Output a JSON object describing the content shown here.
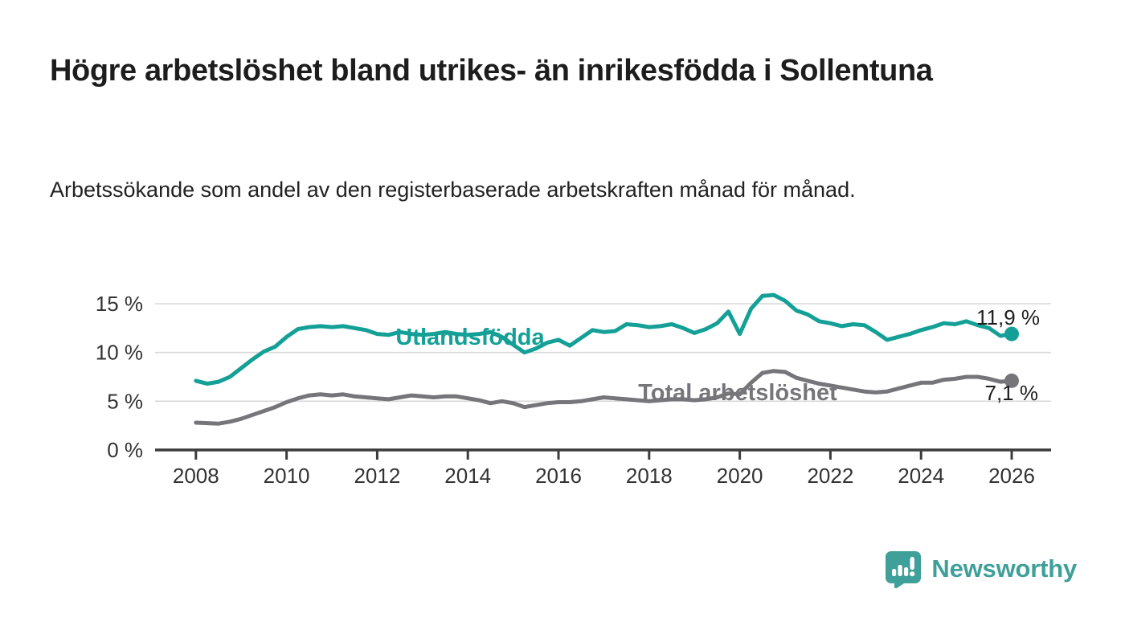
{
  "page": {
    "title": "Högre arbetslöshet bland utrikes- än inrikesfödda i Sollentuna",
    "subtitle": "Arbetssökande som andel av den registerbaserade arbetskraften månad för månad.",
    "brand": {
      "name": "Newsworthy",
      "color": "#3f9f99",
      "icon": "bar-chart-speech-bubble-icon"
    }
  },
  "chart_data": {
    "type": "line",
    "title": "Högre arbetslöshet bland utrikes- än inrikesfödda i Sollentuna",
    "xlabel": "",
    "ylabel": "",
    "grid": "horizontal",
    "xlim": [
      2007.1,
      2026.9
    ],
    "ylim": [
      0,
      16.5
    ],
    "x_ticks": [
      {
        "value": 2008,
        "label": "2008"
      },
      {
        "value": 2010,
        "label": "2010"
      },
      {
        "value": 2012,
        "label": "2012"
      },
      {
        "value": 2014,
        "label": "2014"
      },
      {
        "value": 2016,
        "label": "2016"
      },
      {
        "value": 2018,
        "label": "2018"
      },
      {
        "value": 2020,
        "label": "2020"
      },
      {
        "value": 2022,
        "label": "2022"
      },
      {
        "value": 2024,
        "label": "2024"
      },
      {
        "value": 2026,
        "label": "2026"
      }
    ],
    "y_ticks": [
      {
        "value": 0,
        "label": "0 %"
      },
      {
        "value": 5,
        "label": "5 %"
      },
      {
        "value": 10,
        "label": "10 %"
      },
      {
        "value": 15,
        "label": "15 %"
      }
    ],
    "x": [
      2008.0,
      2008.25,
      2008.5,
      2008.75,
      2009.0,
      2009.25,
      2009.5,
      2009.75,
      2010.0,
      2010.25,
      2010.5,
      2010.75,
      2011.0,
      2011.25,
      2011.5,
      2011.75,
      2012.0,
      2012.25,
      2012.5,
      2012.75,
      2013.0,
      2013.25,
      2013.5,
      2013.75,
      2014.0,
      2014.25,
      2014.5,
      2014.75,
      2015.0,
      2015.25,
      2015.5,
      2015.75,
      2016.0,
      2016.25,
      2016.5,
      2016.75,
      2017.0,
      2017.25,
      2017.5,
      2017.75,
      2018.0,
      2018.25,
      2018.5,
      2018.75,
      2019.0,
      2019.25,
      2019.5,
      2019.75,
      2020.0,
      2020.25,
      2020.5,
      2020.75,
      2021.0,
      2021.25,
      2021.5,
      2021.75,
      2022.0,
      2022.25,
      2022.5,
      2022.75,
      2023.0,
      2023.25,
      2023.5,
      2023.75,
      2024.0,
      2024.25,
      2024.5,
      2024.75,
      2025.0,
      2025.25,
      2025.5,
      2025.75,
      2026.0
    ],
    "series": [
      {
        "name": "Utlandsfödda",
        "color": "#14a096",
        "end_label": "11,9 %",
        "end_value": 11.9,
        "values": [
          7.1,
          6.8,
          7.0,
          7.5,
          8.4,
          9.3,
          10.1,
          10.6,
          11.6,
          12.4,
          12.6,
          12.7,
          12.6,
          12.7,
          12.5,
          12.3,
          11.9,
          11.8,
          12.1,
          11.9,
          11.8,
          11.9,
          12.1,
          11.9,
          11.8,
          11.9,
          12.1,
          11.6,
          10.8,
          10.0,
          10.4,
          11.0,
          11.3,
          10.7,
          11.5,
          12.3,
          12.1,
          12.2,
          12.9,
          12.8,
          12.6,
          12.7,
          12.9,
          12.5,
          12.0,
          12.4,
          13.0,
          14.2,
          11.9,
          14.5,
          15.8,
          15.9,
          15.3,
          14.3,
          13.9,
          13.2,
          13.0,
          12.7,
          12.9,
          12.8,
          12.1,
          11.3,
          11.6,
          11.9,
          12.3,
          12.6,
          13.0,
          12.9,
          13.2,
          12.8,
          12.5,
          11.7,
          11.9
        ]
      },
      {
        "name": "Total arbetslöshet",
        "color": "#76767a",
        "end_label": "7,1 %",
        "end_value": 7.1,
        "values": [
          2.8,
          2.75,
          2.7,
          2.9,
          3.2,
          3.6,
          4.0,
          4.4,
          4.9,
          5.3,
          5.6,
          5.7,
          5.6,
          5.7,
          5.5,
          5.4,
          5.3,
          5.2,
          5.4,
          5.6,
          5.5,
          5.4,
          5.5,
          5.5,
          5.3,
          5.1,
          4.8,
          5.0,
          4.8,
          4.4,
          4.6,
          4.8,
          4.9,
          4.9,
          5.0,
          5.2,
          5.4,
          5.3,
          5.2,
          5.1,
          5.0,
          5.1,
          5.2,
          5.2,
          5.1,
          5.2,
          5.4,
          5.8,
          5.7,
          6.9,
          7.9,
          8.1,
          8.0,
          7.4,
          7.1,
          6.8,
          6.6,
          6.4,
          6.2,
          6.0,
          5.9,
          6.0,
          6.3,
          6.6,
          6.9,
          6.9,
          7.2,
          7.3,
          7.5,
          7.5,
          7.3,
          7.0,
          7.1
        ]
      }
    ],
    "colors": {
      "grid": "#d8d8d8",
      "axis": "#3c3c3c",
      "tick_text": "#333333",
      "annotation_text": "#1e1e1e"
    }
  }
}
